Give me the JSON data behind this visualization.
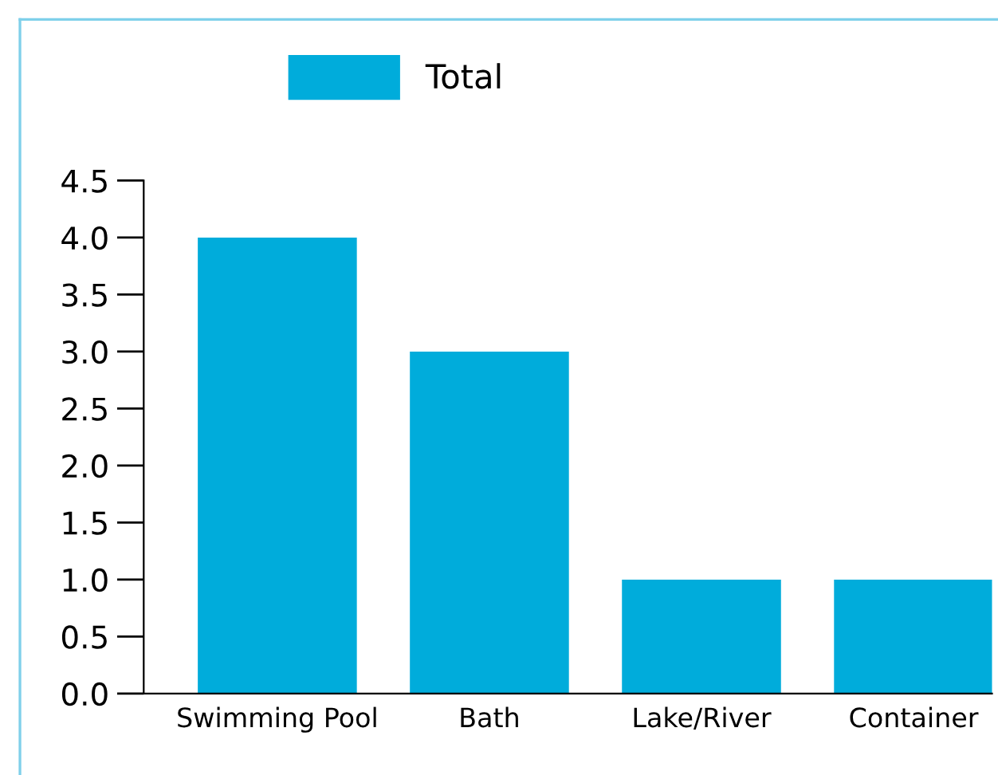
{
  "chart_data": {
    "type": "bar",
    "categories": [
      "Swimming Pool",
      "Bath",
      "Lake/River",
      "Container"
    ],
    "series": [
      {
        "name": "Total",
        "color": "#00acdb",
        "values": [
          4,
          3,
          1,
          1
        ]
      }
    ],
    "ylim": [
      0,
      4.5
    ],
    "yticks": [
      {
        "value": 0,
        "label": "0.0"
      },
      {
        "value": 0.5,
        "label": "0.5"
      },
      {
        "value": 1,
        "label": "1.0"
      },
      {
        "value": 1.5,
        "label": "1.5"
      },
      {
        "value": 2,
        "label": "2.0"
      },
      {
        "value": 2.5,
        "label": "2.5"
      },
      {
        "value": 3,
        "label": "3.0"
      },
      {
        "value": 3.5,
        "label": "3.5"
      },
      {
        "value": 4,
        "label": "4.0"
      },
      {
        "value": 4.5,
        "label": "4.5"
      }
    ],
    "grid": false,
    "legend": "top"
  }
}
